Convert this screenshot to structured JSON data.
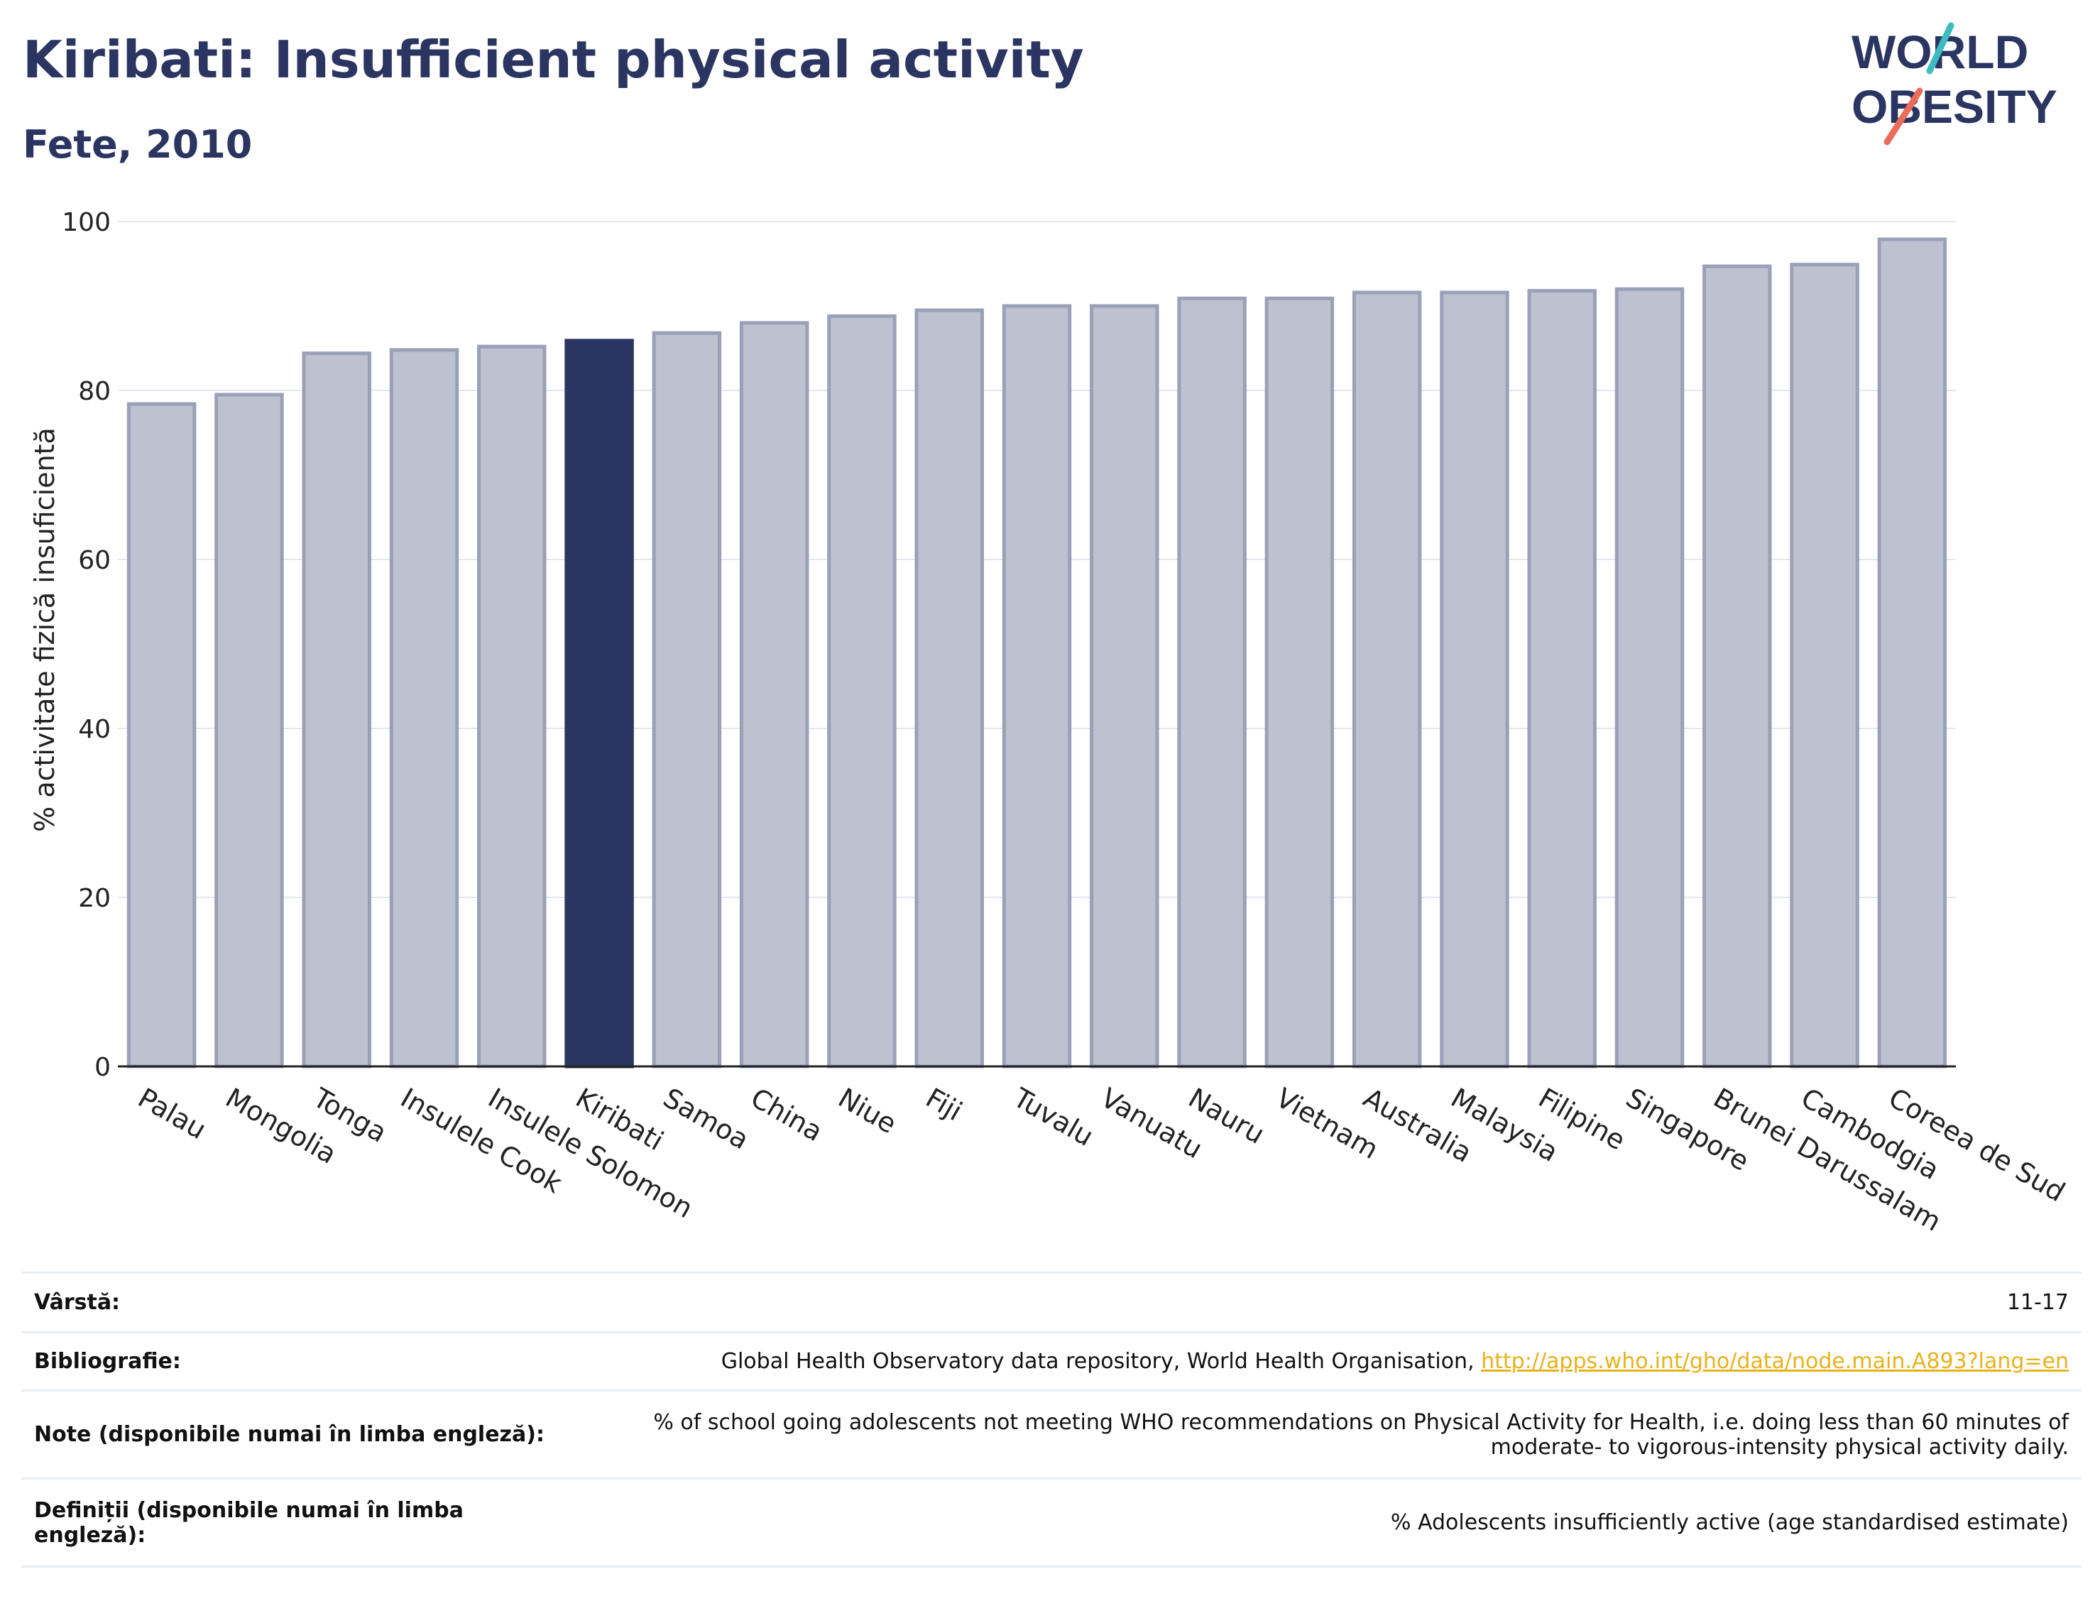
{
  "header": {
    "title": "Kiribati: Insufficient physical activity",
    "subtitle": "Fete, 2010"
  },
  "logo": {
    "line1": "WORLD",
    "line2": "OBESITY"
  },
  "colors": {
    "highlight": "#2b3562",
    "bar": "#bec1cf",
    "bar_border": "#9aa0b8",
    "grid": "#e4e7ec",
    "text": "#2b3562",
    "link": "#e8b21c",
    "logo_teal": "#3cbcc0",
    "logo_coral": "#ec6c5a"
  },
  "chart_data": {
    "type": "bar",
    "ylabel": "% activitate fizică insuficientă",
    "ylim": [
      0,
      100
    ],
    "yticks": [
      0,
      20,
      40,
      60,
      80,
      100
    ],
    "grid": true,
    "highlight": "Kiribati",
    "categories": [
      "Palau",
      "Mongolia",
      "Tonga",
      "Insulele Cook",
      "Insulele Solomon",
      "Kiribati",
      "Samoa",
      "China",
      "Niue",
      "Fiji",
      "Tuvalu",
      "Vanuatu",
      "Nauru",
      "Vietnam",
      "Australia",
      "Malaysia",
      "Filipine",
      "Singapore",
      "Brunei Darussalam",
      "Cambodgia",
      "Coreea de Sud"
    ],
    "values": [
      78.4,
      79.5,
      84.4,
      84.8,
      85.2,
      85.9,
      86.8,
      88.0,
      88.8,
      89.5,
      90.0,
      90.0,
      90.9,
      90.9,
      91.6,
      91.6,
      91.8,
      92.0,
      94.7,
      94.9,
      97.9
    ]
  },
  "meta": {
    "rows": [
      {
        "label": "Vârstă:",
        "value": "11-17"
      },
      {
        "label": "Bibliografie:",
        "value": "Global Health Observatory data repository, World Health Organisation, ",
        "link": "http://apps.who.int/gho/data/node.main.A893?lang=en"
      },
      {
        "label": "Note (disponibile numai în limba engleză):",
        "value": "% of school going adolescents not meeting WHO recommendations on Physical Activity for Health, i.e. doing less than 60 minutes of moderate- to vigorous-intensity physical activity daily."
      },
      {
        "label": "Definiții (disponibile numai în limba engleză):",
        "value": "% Adolescents insufficiently active (age standardised estimate)"
      }
    ]
  }
}
